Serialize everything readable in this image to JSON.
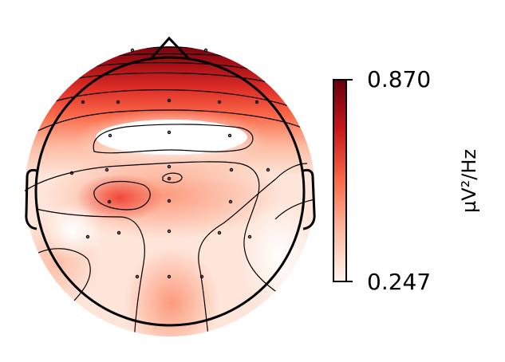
{
  "chart_data": {
    "type": "heatmap",
    "subtype": "eeg-topomap",
    "colormap": "Reds",
    "colorbar": {
      "min": 0.247,
      "max": 0.87,
      "min_label": "0.247",
      "max_label": "0.870",
      "unit": "µV²/Hz",
      "placement": "right"
    },
    "sensor_count": 30,
    "contour_levels": 6
  }
}
